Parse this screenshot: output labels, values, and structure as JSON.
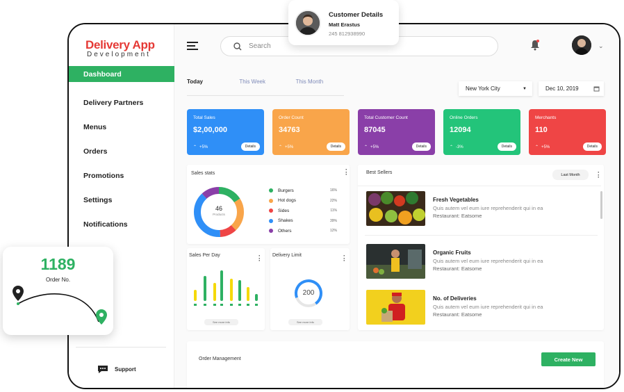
{
  "brand": {
    "line1": "Delivery App",
    "line2": "Development"
  },
  "sidebar": {
    "items": [
      {
        "label": "Dashboard"
      },
      {
        "label": "Delivery Partners"
      },
      {
        "label": "Menus"
      },
      {
        "label": "Orders"
      },
      {
        "label": "Promotions"
      },
      {
        "label": "Settings"
      },
      {
        "label": "Notifications"
      }
    ],
    "support": "Support"
  },
  "header": {
    "search_placeholder": "Search"
  },
  "tabs": [
    {
      "label": "Today"
    },
    {
      "label": "This Week"
    },
    {
      "label": "This Month"
    }
  ],
  "filters": {
    "city": "New York City",
    "date": "Dec 10, 2019"
  },
  "cards": [
    {
      "title": "Total Sales",
      "value": "$2,00,000",
      "change": "+5%",
      "details": "Details",
      "color": "#2f8ff7"
    },
    {
      "title": "Order Count",
      "value": "34763",
      "change": "+5%",
      "details": "Details",
      "color": "#f9a54a"
    },
    {
      "title": "Total Customer Count",
      "value": "87045",
      "change": "+5%",
      "details": "Details",
      "color": "#8a3fa8"
    },
    {
      "title": "Online Orders",
      "value": "12094",
      "change": "-3%",
      "details": "Details",
      "color": "#23c47a"
    },
    {
      "title": "Merchants",
      "value": "110",
      "change": "+5%",
      "details": "Details",
      "color": "#ef4545"
    }
  ],
  "sales_stats": {
    "title": "Sales stats",
    "center_value": "46",
    "center_label": "Products",
    "items": [
      {
        "label": "Burgers",
        "value": "16%",
        "color": "#2eb162"
      },
      {
        "label": "Hot dogs",
        "value": "22%",
        "color": "#f9a54a"
      },
      {
        "label": "Sides",
        "value": "11%",
        "color": "#ef4545"
      },
      {
        "label": "Shakes",
        "value": "39%",
        "color": "#2f8ff7"
      },
      {
        "label": "Others",
        "value": "12%",
        "color": "#8a3fa8"
      }
    ]
  },
  "sales_per_day": {
    "title": "Sales Per Day",
    "see_more": "See more info"
  },
  "delivery_limit": {
    "title": "Delivery Limit",
    "value": "200",
    "see_more": "See more info"
  },
  "best_sellers": {
    "title": "Best Sellers",
    "filter": "Last Month",
    "items": [
      {
        "name": "Fresh Vegetables",
        "desc": "Quis autem vel eum iure reprehenderit qui in ea",
        "restaurant": "Restaurant: Eatsome"
      },
      {
        "name": "Organic Fruits",
        "desc": "Quis autem vel eum iure reprehenderit qui in ea",
        "restaurant": "Restaurant: Eatsome"
      },
      {
        "name": "No. of Deliveries",
        "desc": "Quis autem vel eum iure reprehenderit qui in ea",
        "restaurant": "Restaurant: Eatsome"
      }
    ]
  },
  "order_management": {
    "title": "Order Management",
    "create": "Create New"
  },
  "customer_popup": {
    "title": "Customer Details",
    "name": "Matt Erastus",
    "phone": "245 812938990"
  },
  "order_card": {
    "number": "1189",
    "label": "Order No."
  }
}
